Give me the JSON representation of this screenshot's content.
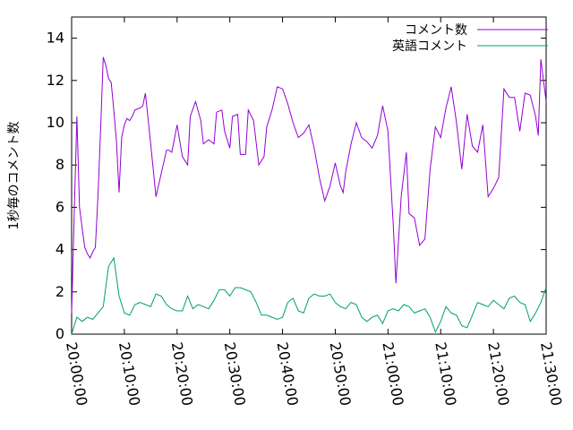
{
  "chart_data": {
    "type": "line",
    "ylabel": "1秒毎のコメント数",
    "ylim": [
      0,
      15
    ],
    "yticks": [
      0,
      2,
      4,
      6,
      8,
      10,
      12,
      14
    ],
    "xlim": [
      "20:00:00",
      "21:30:00"
    ],
    "xticks": [
      "20:00:00",
      "20:10:00",
      "20:20:00",
      "20:30:00",
      "20:40:00",
      "20:50:00",
      "21:00:00",
      "21:10:00",
      "21:20:00",
      "21:30:00"
    ],
    "grid": false,
    "legend": "top-right",
    "series": [
      {
        "name": "コメント数",
        "color": "#9400d3",
        "points": [
          [
            "20:00:00",
            1.0
          ],
          [
            "20:00:30",
            5.7
          ],
          [
            "20:01:00",
            10.3
          ],
          [
            "20:01:30",
            6.0
          ],
          [
            "20:02:00",
            5.0
          ],
          [
            "20:02:30",
            4.1
          ],
          [
            "20:03:00",
            3.8
          ],
          [
            "20:03:30",
            3.6
          ],
          [
            "20:04:00",
            3.9
          ],
          [
            "20:04:30",
            4.1
          ],
          [
            "20:05:00",
            6.5
          ],
          [
            "20:05:30",
            9.7
          ],
          [
            "20:06:00",
            13.1
          ],
          [
            "20:06:30",
            12.7
          ],
          [
            "20:07:00",
            12.1
          ],
          [
            "20:07:30",
            11.9
          ],
          [
            "20:08:00",
            10.6
          ],
          [
            "20:08:30",
            9.1
          ],
          [
            "20:09:00",
            6.7
          ],
          [
            "20:09:30",
            9.3
          ],
          [
            "20:10:00",
            9.9
          ],
          [
            "20:10:30",
            10.2
          ],
          [
            "20:11:00",
            10.1
          ],
          [
            "20:11:30",
            10.3
          ],
          [
            "20:12:00",
            10.6
          ],
          [
            "20:13:00",
            10.7
          ],
          [
            "20:13:30",
            10.8
          ],
          [
            "20:14:00",
            11.4
          ],
          [
            "20:15:00",
            9.0
          ],
          [
            "20:16:00",
            6.5
          ],
          [
            "20:17:00",
            7.6
          ],
          [
            "20:18:00",
            8.7
          ],
          [
            "20:18:30",
            8.7
          ],
          [
            "20:19:00",
            8.6
          ],
          [
            "20:20:00",
            9.9
          ],
          [
            "20:21:00",
            8.4
          ],
          [
            "20:22:00",
            8.0
          ],
          [
            "20:22:30",
            10.3
          ],
          [
            "20:23:30",
            11.0
          ],
          [
            "20:24:30",
            10.1
          ],
          [
            "20:25:00",
            9.0
          ],
          [
            "20:26:00",
            9.2
          ],
          [
            "20:27:00",
            9.0
          ],
          [
            "20:27:30",
            10.5
          ],
          [
            "20:28:30",
            10.6
          ],
          [
            "20:29:00",
            9.6
          ],
          [
            "20:30:00",
            8.8
          ],
          [
            "20:30:30",
            10.3
          ],
          [
            "20:31:30",
            10.4
          ],
          [
            "20:32:00",
            8.5
          ],
          [
            "20:33:00",
            8.5
          ],
          [
            "20:33:30",
            10.6
          ],
          [
            "20:34:30",
            10.1
          ],
          [
            "20:35:30",
            8.0
          ],
          [
            "20:36:30",
            8.4
          ],
          [
            "20:37:00",
            9.8
          ],
          [
            "20:38:00",
            10.6
          ],
          [
            "20:39:00",
            11.7
          ],
          [
            "20:40:00",
            11.6
          ],
          [
            "20:41:00",
            10.9
          ],
          [
            "20:42:00",
            10.0
          ],
          [
            "20:43:00",
            9.3
          ],
          [
            "20:44:00",
            9.5
          ],
          [
            "20:45:00",
            9.9
          ],
          [
            "20:46:00",
            8.8
          ],
          [
            "20:47:00",
            7.4
          ],
          [
            "20:48:00",
            6.3
          ],
          [
            "20:49:00",
            7.0
          ],
          [
            "20:50:00",
            8.1
          ],
          [
            "20:51:00",
            7.0
          ],
          [
            "20:51:30",
            6.7
          ],
          [
            "20:52:00",
            7.7
          ],
          [
            "20:53:00",
            9.0
          ],
          [
            "20:54:00",
            10.0
          ],
          [
            "20:55:00",
            9.3
          ],
          [
            "20:56:00",
            9.1
          ],
          [
            "20:57:00",
            8.8
          ],
          [
            "20:58:00",
            9.4
          ],
          [
            "20:59:00",
            10.8
          ],
          [
            "21:00:00",
            9.6
          ],
          [
            "21:01:00",
            5.2
          ],
          [
            "21:01:30",
            2.4
          ],
          [
            "21:02:30",
            6.5
          ],
          [
            "21:03:30",
            8.6
          ],
          [
            "21:04:00",
            5.7
          ],
          [
            "21:05:00",
            5.5
          ],
          [
            "21:06:00",
            4.2
          ],
          [
            "21:07:00",
            4.5
          ],
          [
            "21:08:00",
            7.8
          ],
          [
            "21:09:00",
            9.8
          ],
          [
            "21:10:00",
            9.3
          ],
          [
            "21:11:00",
            10.7
          ],
          [
            "21:12:00",
            11.7
          ],
          [
            "21:13:00",
            10.0
          ],
          [
            "21:14:00",
            7.8
          ],
          [
            "21:15:00",
            10.4
          ],
          [
            "21:16:00",
            8.9
          ],
          [
            "21:17:00",
            8.6
          ],
          [
            "21:18:00",
            9.9
          ],
          [
            "21:19:00",
            6.5
          ],
          [
            "21:20:00",
            6.9
          ],
          [
            "21:21:00",
            7.4
          ],
          [
            "21:22:00",
            11.6
          ],
          [
            "21:23:00",
            11.2
          ],
          [
            "21:24:00",
            11.2
          ],
          [
            "21:25:00",
            9.6
          ],
          [
            "21:26:00",
            11.4
          ],
          [
            "21:27:00",
            11.3
          ],
          [
            "21:28:00",
            10.3
          ],
          [
            "21:28:30",
            9.4
          ],
          [
            "21:29:00",
            13.0
          ],
          [
            "21:30:00",
            11.0
          ]
        ]
      },
      {
        "name": "英語コメント",
        "color": "#009e73",
        "points": [
          [
            "20:00:00",
            0.0
          ],
          [
            "20:01:00",
            0.8
          ],
          [
            "20:02:00",
            0.6
          ],
          [
            "20:03:00",
            0.8
          ],
          [
            "20:04:00",
            0.7
          ],
          [
            "20:05:00",
            1.0
          ],
          [
            "20:06:00",
            1.3
          ],
          [
            "20:07:00",
            3.2
          ],
          [
            "20:08:00",
            3.6
          ],
          [
            "20:09:00",
            1.8
          ],
          [
            "20:10:00",
            1.0
          ],
          [
            "20:11:00",
            0.9
          ],
          [
            "20:12:00",
            1.4
          ],
          [
            "20:13:00",
            1.5
          ],
          [
            "20:14:00",
            1.4
          ],
          [
            "20:15:00",
            1.3
          ],
          [
            "20:16:00",
            1.9
          ],
          [
            "20:17:00",
            1.8
          ],
          [
            "20:18:00",
            1.4
          ],
          [
            "20:19:00",
            1.2
          ],
          [
            "20:20:00",
            1.1
          ],
          [
            "20:21:00",
            1.1
          ],
          [
            "20:22:00",
            1.8
          ],
          [
            "20:23:00",
            1.2
          ],
          [
            "20:24:00",
            1.4
          ],
          [
            "20:25:00",
            1.3
          ],
          [
            "20:26:00",
            1.2
          ],
          [
            "20:27:00",
            1.6
          ],
          [
            "20:28:00",
            2.1
          ],
          [
            "20:29:00",
            2.1
          ],
          [
            "20:30:00",
            1.8
          ],
          [
            "20:31:00",
            2.2
          ],
          [
            "20:32:00",
            2.2
          ],
          [
            "20:33:00",
            2.1
          ],
          [
            "20:34:00",
            2.0
          ],
          [
            "20:35:00",
            1.5
          ],
          [
            "20:36:00",
            0.9
          ],
          [
            "20:37:00",
            0.9
          ],
          [
            "20:38:00",
            0.8
          ],
          [
            "20:39:00",
            0.7
          ],
          [
            "20:40:00",
            0.8
          ],
          [
            "20:41:00",
            1.5
          ],
          [
            "20:42:00",
            1.7
          ],
          [
            "20:43:00",
            1.1
          ],
          [
            "20:44:00",
            1.0
          ],
          [
            "20:45:00",
            1.7
          ],
          [
            "20:46:00",
            1.9
          ],
          [
            "20:47:00",
            1.8
          ],
          [
            "20:48:00",
            1.8
          ],
          [
            "20:49:00",
            1.9
          ],
          [
            "20:50:00",
            1.5
          ],
          [
            "20:51:00",
            1.3
          ],
          [
            "20:52:00",
            1.2
          ],
          [
            "20:53:00",
            1.5
          ],
          [
            "20:54:00",
            1.4
          ],
          [
            "20:55:00",
            0.8
          ],
          [
            "20:56:00",
            0.6
          ],
          [
            "20:57:00",
            0.8
          ],
          [
            "20:58:00",
            0.9
          ],
          [
            "20:59:00",
            0.5
          ],
          [
            "21:00:00",
            1.1
          ],
          [
            "21:01:00",
            1.2
          ],
          [
            "21:02:00",
            1.1
          ],
          [
            "21:03:00",
            1.4
          ],
          [
            "21:04:00",
            1.3
          ],
          [
            "21:05:00",
            1.0
          ],
          [
            "21:06:00",
            1.1
          ],
          [
            "21:07:00",
            1.2
          ],
          [
            "21:08:00",
            0.8
          ],
          [
            "21:09:00",
            0.1
          ],
          [
            "21:10:00",
            0.6
          ],
          [
            "21:11:00",
            1.3
          ],
          [
            "21:12:00",
            1.0
          ],
          [
            "21:13:00",
            0.9
          ],
          [
            "21:14:00",
            0.4
          ],
          [
            "21:15:00",
            0.3
          ],
          [
            "21:16:00",
            0.9
          ],
          [
            "21:17:00",
            1.5
          ],
          [
            "21:18:00",
            1.4
          ],
          [
            "21:19:00",
            1.3
          ],
          [
            "21:20:00",
            1.6
          ],
          [
            "21:21:00",
            1.4
          ],
          [
            "21:22:00",
            1.2
          ],
          [
            "21:23:00",
            1.7
          ],
          [
            "21:24:00",
            1.8
          ],
          [
            "21:25:00",
            1.5
          ],
          [
            "21:26:00",
            1.4
          ],
          [
            "21:27:00",
            0.6
          ],
          [
            "21:28:00",
            1.0
          ],
          [
            "21:29:00",
            1.5
          ],
          [
            "21:30:00",
            2.2
          ]
        ]
      }
    ]
  }
}
